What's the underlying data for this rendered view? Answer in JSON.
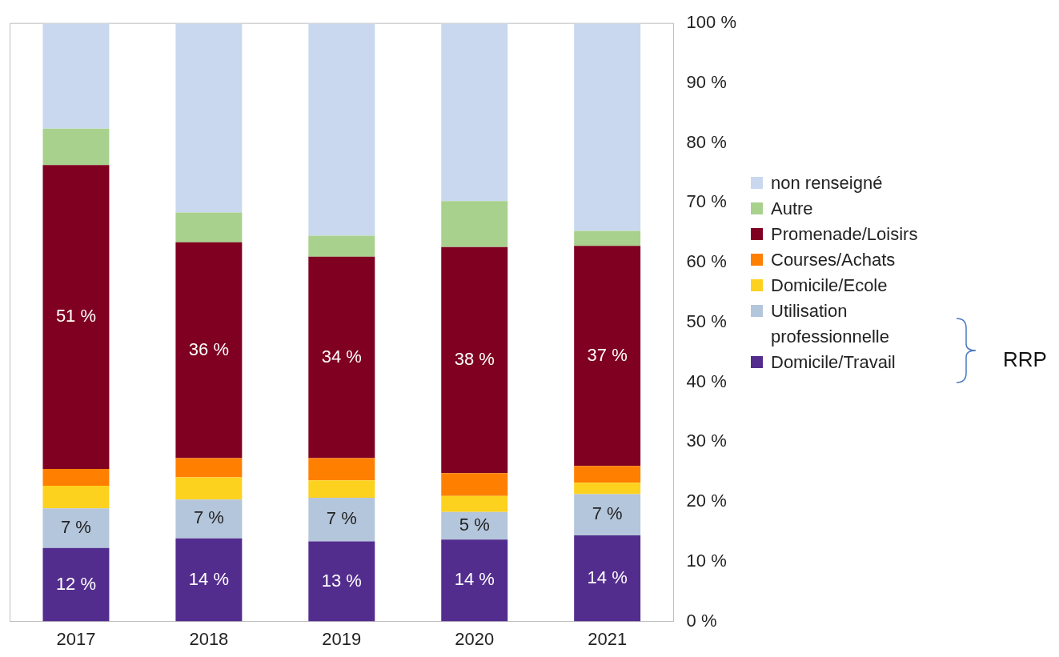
{
  "chart_data": {
    "type": "bar",
    "stacked": true,
    "categories": [
      "2017",
      "2018",
      "2019",
      "2020",
      "2021"
    ],
    "series": [
      {
        "name": "Domicile/Travail",
        "color": "#532d8e",
        "values": [
          12.3,
          13.9,
          13.4,
          13.7,
          14.4
        ],
        "value_labels": [
          "12 %",
          "14 %",
          "13 %",
          "14 %",
          "14 %"
        ]
      },
      {
        "name": "Utilisation professionnelle",
        "color": "#b4c6dc",
        "values": [
          6.6,
          6.5,
          7.3,
          4.6,
          6.9
        ],
        "value_labels": [
          "7 %",
          "7 %",
          "7 %",
          "5 %",
          "7 %"
        ]
      },
      {
        "name": "Domicile/Ecole",
        "color": "#fdd21f",
        "values": [
          3.8,
          3.7,
          2.9,
          2.7,
          1.9
        ]
      },
      {
        "name": "Courses/Achats",
        "color": "#ff7f00",
        "values": [
          2.8,
          3.2,
          3.7,
          3.8,
          2.8
        ]
      },
      {
        "name": "Promenade/Loisirs",
        "color": "#7f0020",
        "values": [
          50.8,
          36.1,
          33.7,
          37.8,
          36.8
        ],
        "value_labels": [
          "51 %",
          "36 %",
          "34 %",
          "38 %",
          "37 %"
        ]
      },
      {
        "name": "Autre",
        "color": "#a9d18e",
        "values": [
          6.1,
          5.0,
          3.5,
          7.7,
          2.5
        ]
      },
      {
        "name": "non renseigné",
        "color": "#c9d8ee",
        "values": [
          17.6,
          31.6,
          35.5,
          29.7,
          34.7
        ]
      }
    ],
    "ylim": [
      0,
      100
    ],
    "yticks": [
      {
        "value": 0,
        "label": "0 %"
      },
      {
        "value": 10,
        "label": "10 %"
      },
      {
        "value": 20,
        "label": "20 %"
      },
      {
        "value": 30,
        "label": "30 %"
      },
      {
        "value": 40,
        "label": "40 %"
      },
      {
        "value": 50,
        "label": "50 %"
      },
      {
        "value": 60,
        "label": "60 %"
      },
      {
        "value": 70,
        "label": "70 %"
      },
      {
        "value": 80,
        "label": "80 %"
      },
      {
        "value": 90,
        "label": "90 %"
      },
      {
        "value": 100,
        "label": "100 %"
      }
    ],
    "grid": false,
    "legend": "right",
    "annotations": [
      "RRP"
    ]
  }
}
